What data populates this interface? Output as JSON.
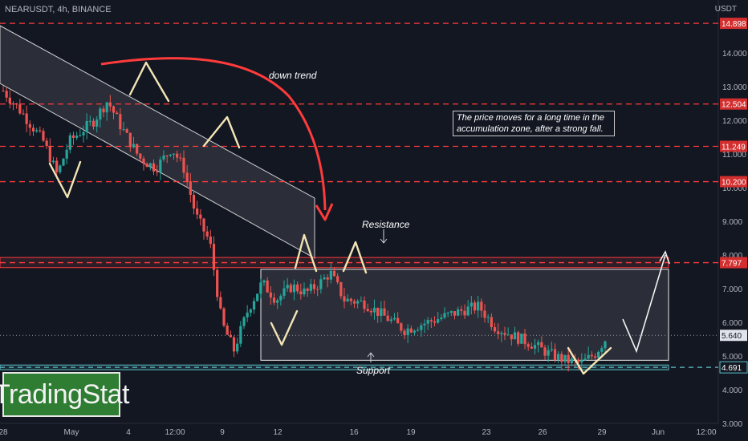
{
  "header": {
    "symbol": "NEARUSDT, 4h, BINANCE",
    "currency": "USDT"
  },
  "brand": {
    "label": "TradingStat"
  },
  "annotations": {
    "trend": "down trend",
    "resistance": "Resistance",
    "support": "Support",
    "note": "The price moves for a long time in the accumulation zone, after a strong fall."
  },
  "colors": {
    "background": "#131722",
    "up": "#26a69a",
    "down": "#ef5350",
    "level_line": "#ff3b3b",
    "support_line": "#5bc0c8",
    "arrow": "#ff3b3b",
    "brand": "#2e7d32"
  },
  "chart_data": {
    "type": "candlestick",
    "ylim": [
      2.6,
      15.4
    ],
    "y_ticks": [
      "3.000",
      "4.000",
      "5.000",
      "6.000",
      "7.000",
      "8.000",
      "9.000",
      "10.000",
      "11.000",
      "12.000",
      "13.000",
      "14.000"
    ],
    "x_ticks": [
      "28",
      "May",
      "4",
      "12:00",
      "9",
      "12",
      "16",
      "19",
      "23",
      "26",
      "29",
      "Jun",
      "12:00"
    ],
    "levels": [
      {
        "price": 14.898,
        "label": "14.898"
      },
      {
        "price": 12.504,
        "label": "12.504"
      },
      {
        "price": 11.249,
        "label": "11.249"
      },
      {
        "price": 10.2,
        "label": "10.200"
      },
      {
        "price": 7.797,
        "label": "7.797"
      }
    ],
    "last_price": {
      "price": 5.64,
      "label": "5.640"
    },
    "support_level": {
      "price": 4.691,
      "label": "4.691"
    },
    "resistance_zone": [
      7.65,
      7.95
    ],
    "support_zone": [
      4.62,
      4.76
    ],
    "accumulation_range": [
      4.9,
      7.6
    ],
    "price_path": [
      {
        "day": 0,
        "price": 12.9
      },
      {
        "day": 1,
        "price": 12.2
      },
      {
        "day": 2,
        "price": 11.4
      },
      {
        "day": 2.7,
        "price": 10.4
      },
      {
        "day": 3.3,
        "price": 11.4
      },
      {
        "day": 4.5,
        "price": 12.0
      },
      {
        "day": 5.2,
        "price": 12.6
      },
      {
        "day": 5.9,
        "price": 11.8
      },
      {
        "day": 6.8,
        "price": 10.9
      },
      {
        "day": 7.6,
        "price": 10.6
      },
      {
        "day": 8.4,
        "price": 11.2
      },
      {
        "day": 9.0,
        "price": 10.6
      },
      {
        "day": 9.6,
        "price": 9.2
      },
      {
        "day": 10.3,
        "price": 8.4
      },
      {
        "day": 10.9,
        "price": 6.0
      },
      {
        "day": 11.5,
        "price": 5.2
      },
      {
        "day": 12.2,
        "price": 6.4
      },
      {
        "day": 12.9,
        "price": 7.2
      },
      {
        "day": 13.6,
        "price": 6.7
      },
      {
        "day": 14.4,
        "price": 7.1
      },
      {
        "day": 15.1,
        "price": 6.9
      },
      {
        "day": 15.8,
        "price": 7.2
      },
      {
        "day": 16.3,
        "price": 7.5
      },
      {
        "day": 17.0,
        "price": 6.7
      },
      {
        "day": 18.0,
        "price": 6.6
      },
      {
        "day": 19.0,
        "price": 6.2
      },
      {
        "day": 20.0,
        "price": 5.8
      },
      {
        "day": 21.0,
        "price": 6.0
      },
      {
        "day": 22.0,
        "price": 6.2
      },
      {
        "day": 23.0,
        "price": 6.4
      },
      {
        "day": 23.7,
        "price": 6.5
      },
      {
        "day": 24.5,
        "price": 5.9
      },
      {
        "day": 25.5,
        "price": 5.6
      },
      {
        "day": 26.3,
        "price": 5.4
      },
      {
        "day": 27.2,
        "price": 5.1
      },
      {
        "day": 28.0,
        "price": 4.9
      },
      {
        "day": 28.8,
        "price": 4.8
      },
      {
        "day": 29.5,
        "price": 5.1
      },
      {
        "day": 30.1,
        "price": 5.6
      }
    ]
  }
}
